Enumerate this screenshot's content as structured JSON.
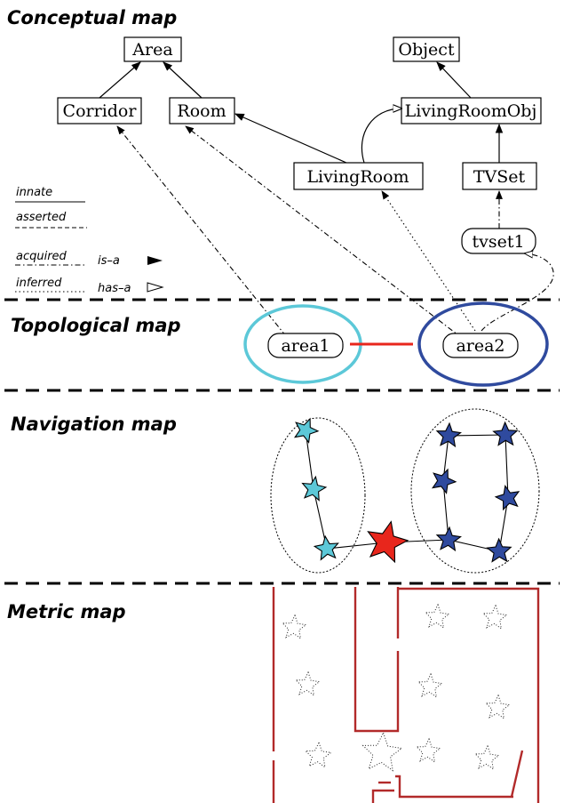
{
  "sections": {
    "conceptual": "Conceptual map",
    "topological": "Topological map",
    "navigation": "Navigation map",
    "metric": "Metric map"
  },
  "concepts": {
    "area": "Area",
    "object": "Object",
    "corridor": "Corridor",
    "room": "Room",
    "livingroomobj": "LivingRoomObj",
    "livingroom": "LivingRoom",
    "tvset": "TVSet",
    "tvset1": "tvset1"
  },
  "legend": {
    "innate": "innate",
    "asserted": "asserted",
    "acquired": "acquired",
    "inferred": "inferred",
    "isa": "is–a",
    "hasa": "has–a"
  },
  "topology": {
    "area1": "area1",
    "area2": "area2"
  },
  "colors": {
    "cyan": "#5cc8d8",
    "blue": "#2f4a9e",
    "red": "#e8261c",
    "wall": "#b22a2a"
  }
}
